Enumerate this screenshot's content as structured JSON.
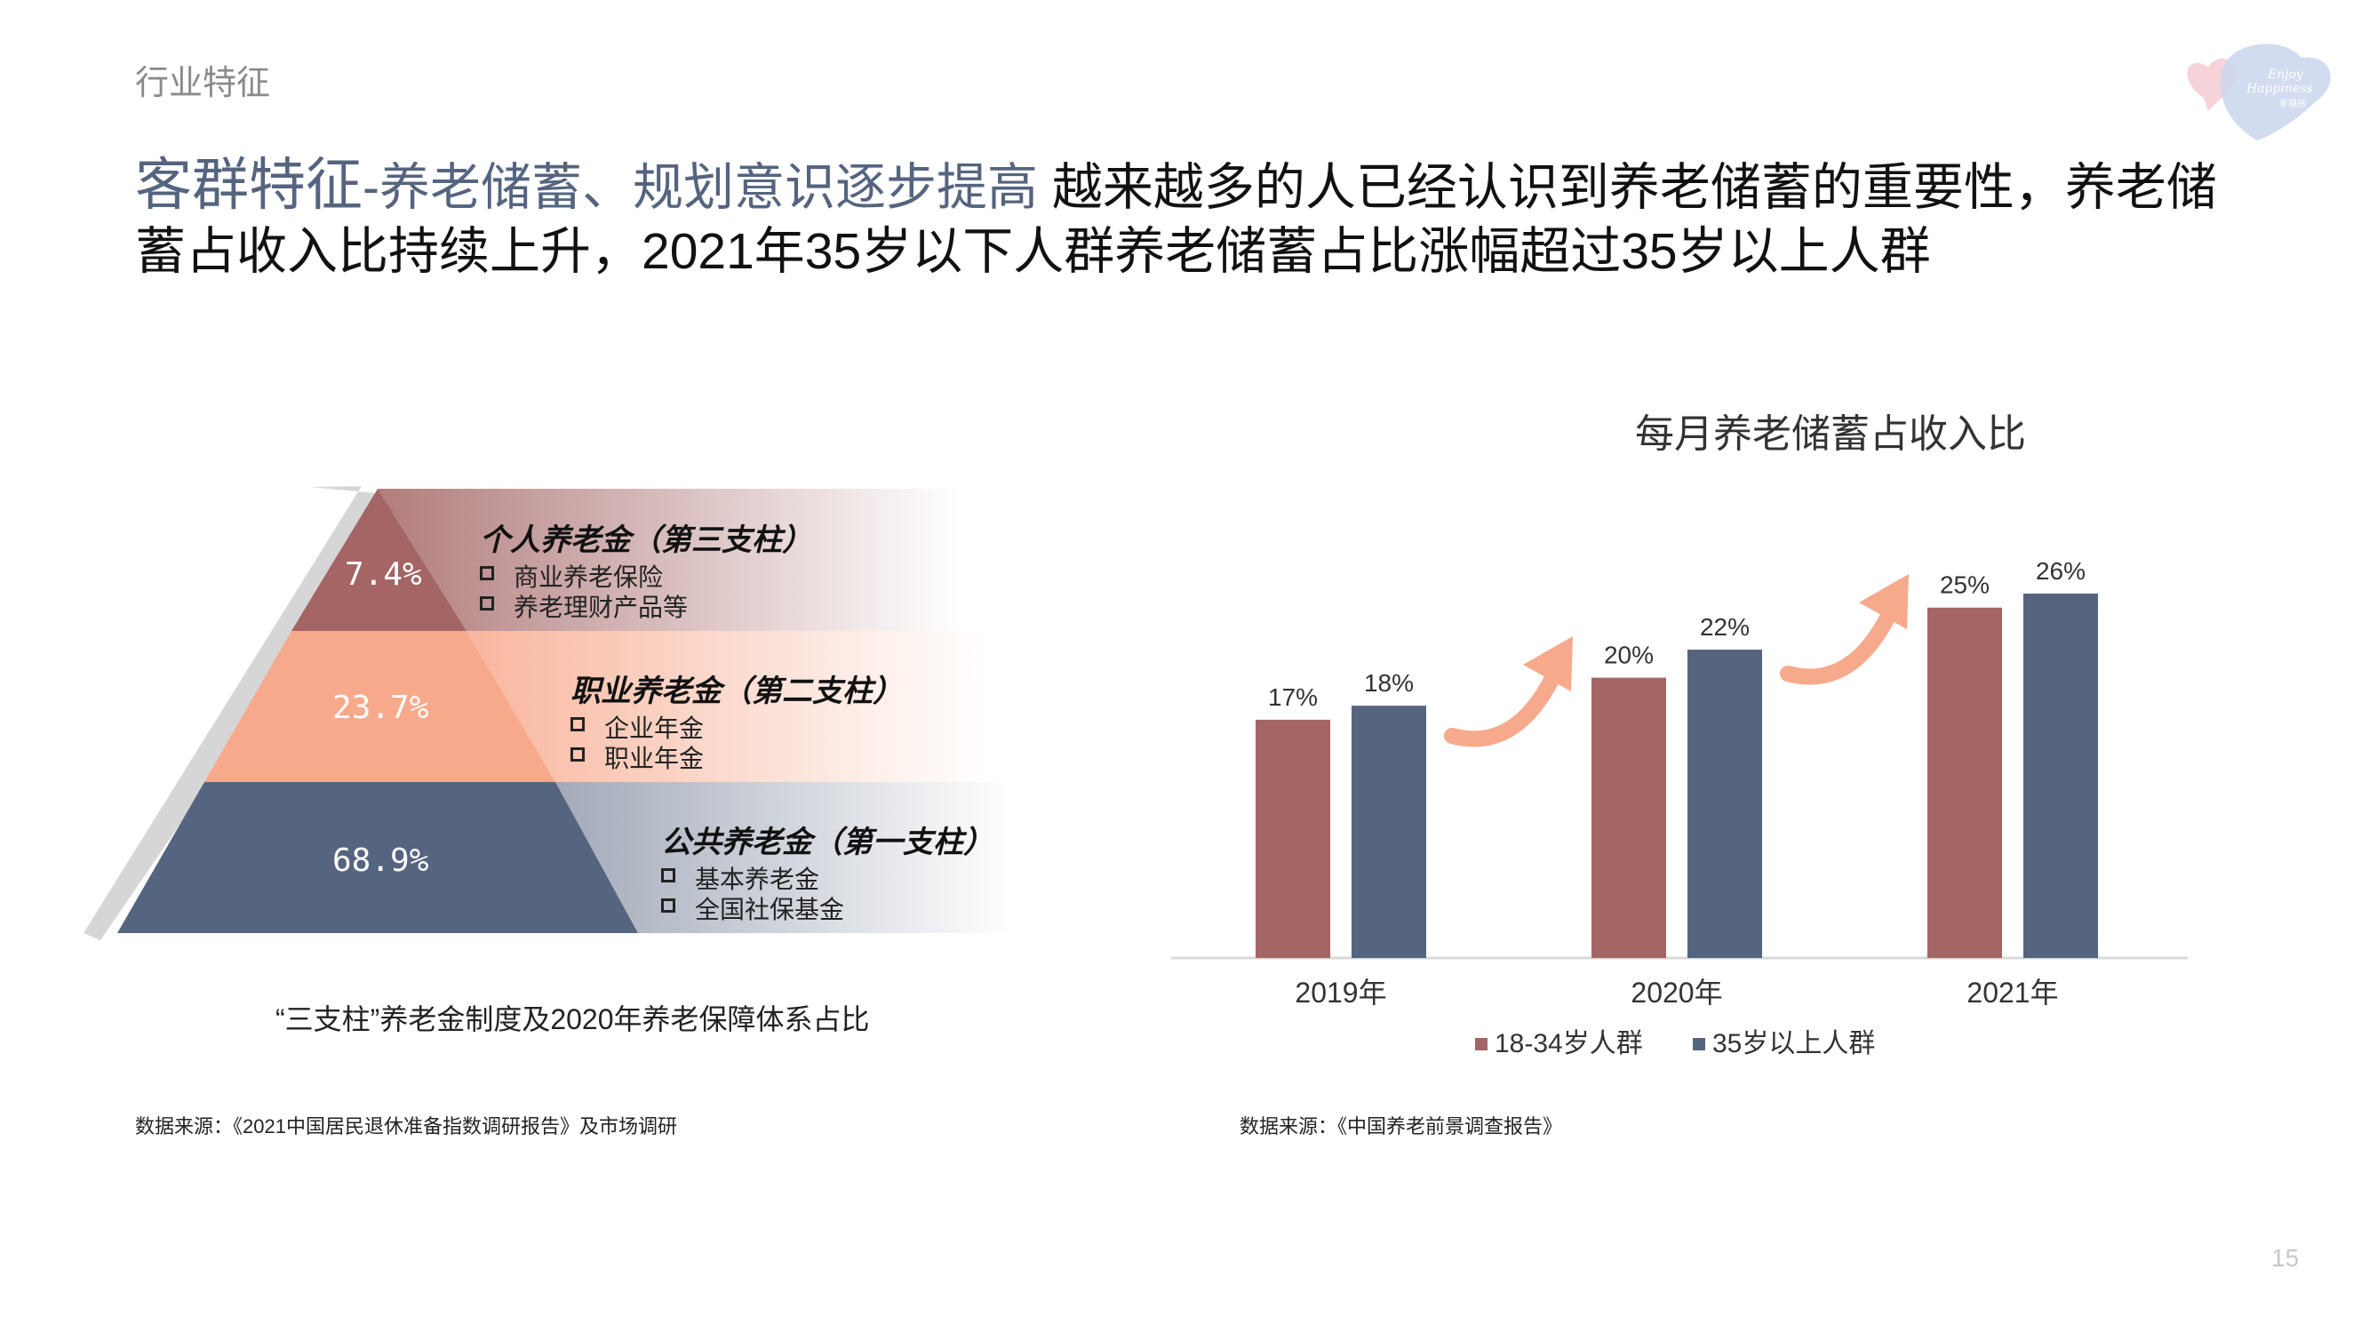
{
  "section_label": "行业特征",
  "headline": {
    "accent": "客群特征",
    "sub": "-养老储蓄、规划意识逐步提高",
    "text": " 越来越多的人已经认识到养老储蓄的重要性，养老储蓄占收入比持续上升，2021年35岁以下人群养老储蓄占比涨幅超过35岁以上人群"
  },
  "logo": {
    "text1": "Enjoy",
    "text2": "Happiness",
    "text3": "幸福感"
  },
  "pyramid": {
    "tiers": [
      {
        "pct": "7.4%",
        "title": "个人养老金（第三支柱）",
        "items": [
          "商业养老保险",
          "养老理财产品等"
        ],
        "color": "#a46565"
      },
      {
        "pct": "23.7%",
        "title": "职业养老金（第二支柱）",
        "items": [
          "企业年金",
          "职业年金"
        ],
        "color": "#f7a98c"
      },
      {
        "pct": "68.9%",
        "title": "公共养老金（第一支柱）",
        "items": [
          "基本养老金",
          "全国社保基金"
        ],
        "color": "#55647f"
      }
    ],
    "caption": "“三支柱”养老金制度及2020年养老保障体系占比",
    "source": "数据来源：《2021中国居民退休准备指数调研报告》及市场调研"
  },
  "chart_data": {
    "type": "bar",
    "title": "每月养老储蓄占收入比",
    "categories": [
      "2019年",
      "2020年",
      "2021年"
    ],
    "series": [
      {
        "name": "18-34岁人群",
        "values": [
          17,
          20,
          25
        ],
        "labels": [
          "17%",
          "20%",
          "25%"
        ],
        "color": "#a46565"
      },
      {
        "name": "35岁以上人群",
        "values": [
          18,
          22,
          26
        ],
        "labels": [
          "18%",
          "22%",
          "26%"
        ],
        "color": "#55647f"
      }
    ],
    "ylim": [
      0,
      30
    ],
    "grid": false,
    "legend": "bottom",
    "source": "数据来源：《中国养老前景调查报告》"
  },
  "page_number": "15"
}
